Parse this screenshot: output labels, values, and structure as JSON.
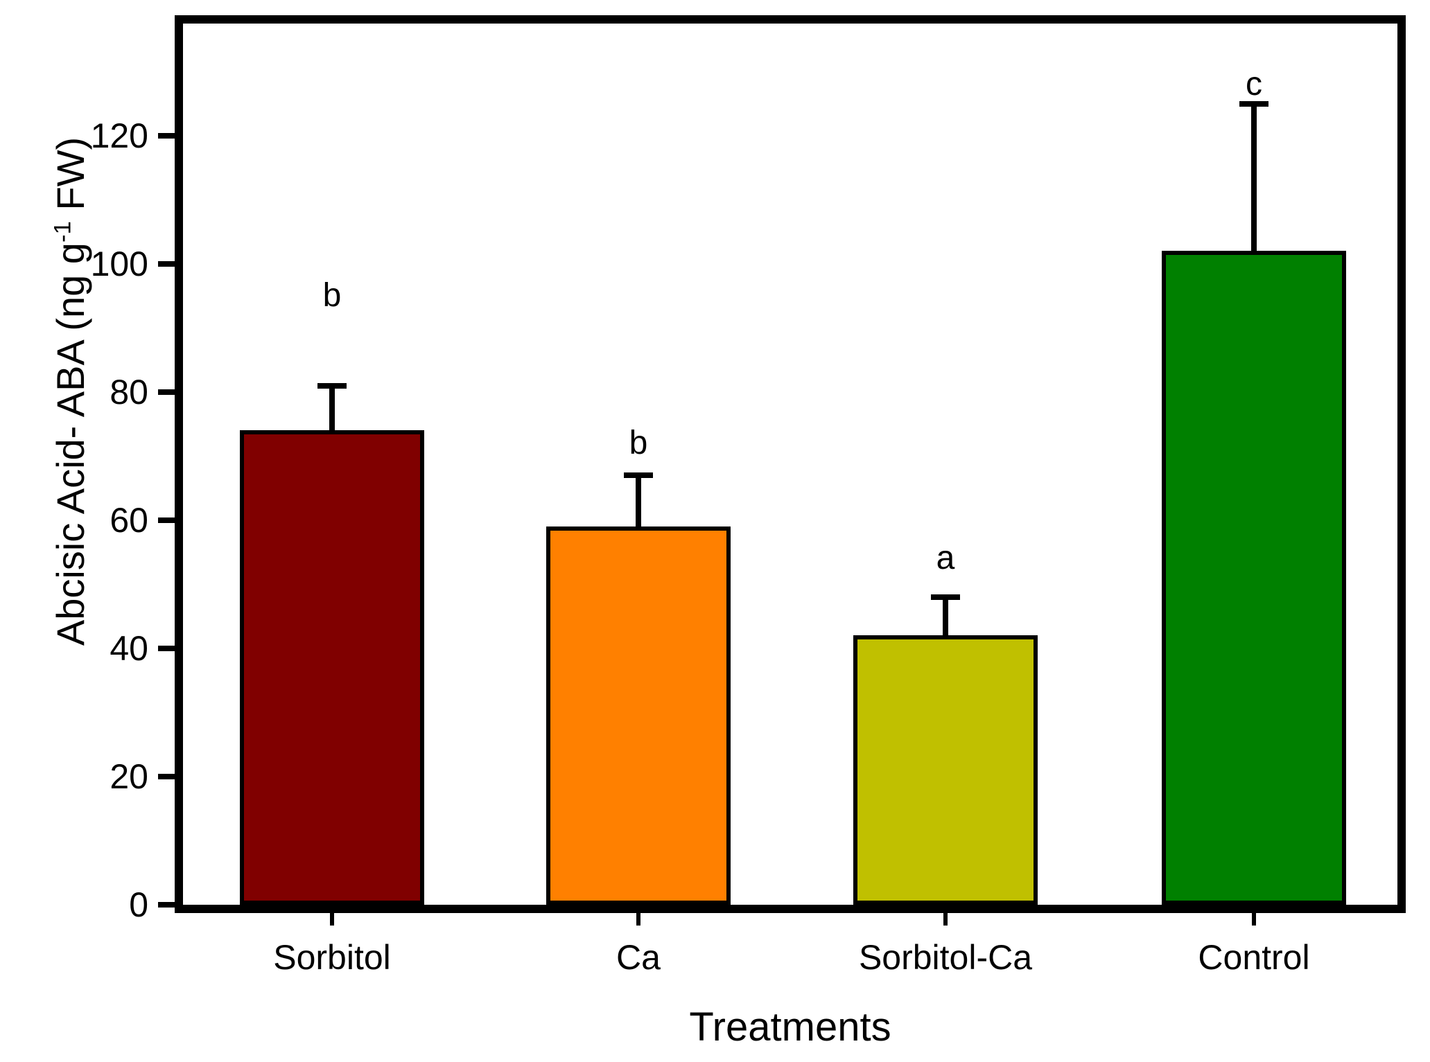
{
  "chart_data": {
    "type": "bar",
    "title": "",
    "xlabel": "Treatments",
    "ylabel": "Abcisic Acid- ABA (ng g-1 FW)",
    "ylabel_parts": {
      "prefix": "Abcisic Acid- ABA (ng g",
      "superscript": "-1",
      "suffix": " FW)"
    },
    "categories": [
      "Sorbitol",
      "Ca",
      "Sorbitol-Ca",
      "Control"
    ],
    "values": [
      74,
      59,
      42,
      102
    ],
    "errors_plus": [
      7,
      8,
      6,
      23
    ],
    "sig_letters": [
      "b",
      "b",
      "a",
      "c"
    ],
    "letter_y": [
      95,
      72,
      54,
      128
    ],
    "yticks": [
      0,
      20,
      40,
      60,
      80,
      100,
      120
    ],
    "ylim": [
      0,
      137.5
    ],
    "grid": false,
    "legend": "none",
    "bar_colors": [
      "#800000",
      "#FF8000",
      "#C0C000",
      "#008000"
    ],
    "bar_border_color": "#000000",
    "frame_color": "#000000",
    "background": "#FFFFFF"
  }
}
